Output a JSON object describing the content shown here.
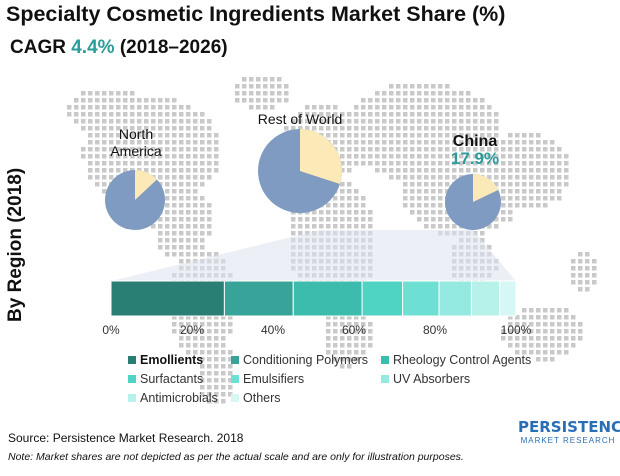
{
  "title": "Specialty Cosmetic Ingredients Market Share (%)",
  "cagr": {
    "prefix": "CAGR ",
    "value": "4.4%",
    "period": " (2018–2026)"
  },
  "side_label": "By Region (2018)",
  "regions": [
    {
      "name": "North America",
      "lines": [
        "North",
        "America"
      ],
      "share": 0.13
    },
    {
      "name": "Rest of World",
      "lines": [
        "Rest of World"
      ],
      "share": 0.3
    },
    {
      "name": "China",
      "lines": [
        "China"
      ],
      "value_label": "17.9%",
      "share": 0.179
    }
  ],
  "chart_data": {
    "type": "bar",
    "orientation": "horizontal-stacked",
    "categories": [
      "Emollients",
      "Conditioning Polymers",
      "Rheology Control Agents",
      "Surfactants",
      "Emulsifiers",
      "UV Absorbers",
      "Antimicrobials",
      "Others"
    ],
    "values": [
      28,
      17,
      17,
      10,
      9,
      8,
      7,
      4
    ],
    "xlabel": "",
    "xticks": [
      "0%",
      "20%",
      "40%",
      "60%",
      "80%",
      "100%"
    ],
    "xlim": [
      0,
      100
    ],
    "colors": [
      "#2a7f74",
      "#38a398",
      "#3bbcad",
      "#4fd3c3",
      "#6ee0d3",
      "#94eae1",
      "#b6f1ea",
      "#d6f7f3"
    ]
  },
  "legend": {
    "items": [
      {
        "label": "Emollients",
        "bold": true
      },
      {
        "label": "Conditioning Polymers",
        "bold": false
      },
      {
        "label": "Rheology Control Agents",
        "bold": false
      },
      {
        "label": "Surfactants",
        "bold": false
      },
      {
        "label": "Emulsifiers",
        "bold": false
      },
      {
        "label": "UV Absorbers",
        "bold": false
      },
      {
        "label": "Antimicrobials",
        "bold": false
      },
      {
        "label": "Others",
        "bold": false
      }
    ]
  },
  "source": "Source: Persistence Market Research. 2018",
  "note": "Note: Market shares are not depicted as per the actual scale and are only for illustration purposes.",
  "logo": {
    "main": "PERSISTENCE",
    "sub": "MARKET RESEARCH"
  },
  "colors": {
    "pie_base": "#7f9bc2",
    "pie_slice": "#fbeab8",
    "accent": "#2a9d9a",
    "map_dots": "#c9c9c9",
    "projection": "#dde3ee"
  }
}
